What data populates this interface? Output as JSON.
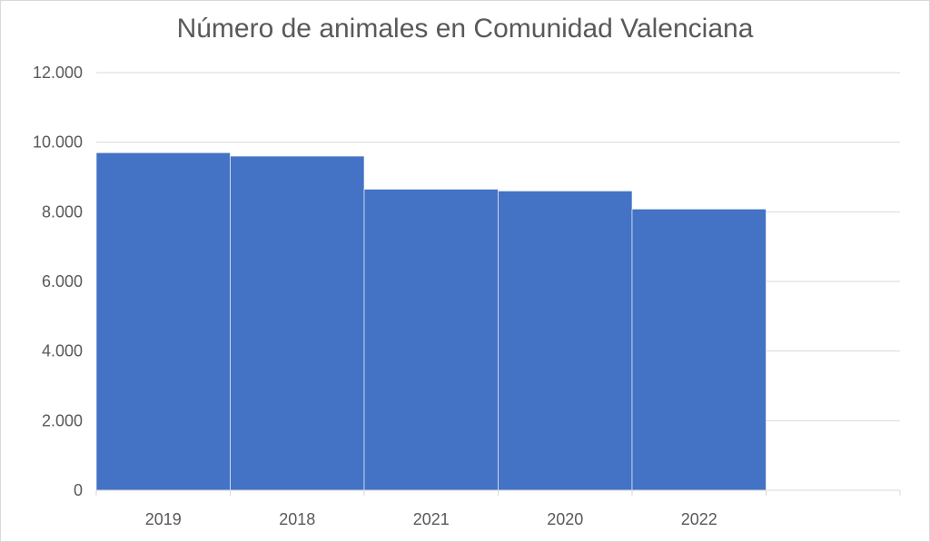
{
  "chart_data": {
    "type": "bar",
    "title": "Número de animales en Comunidad Valenciana",
    "categories": [
      "2019",
      "2018",
      "2021",
      "2020",
      "2022"
    ],
    "values": [
      9700,
      9600,
      8650,
      8600,
      8080
    ],
    "ylim": [
      0,
      12000
    ],
    "yticks": [
      0,
      2000,
      4000,
      6000,
      8000,
      10000,
      12000
    ],
    "ytick_labels": [
      "0",
      "2.000",
      "4.000",
      "6.000",
      "8.000",
      "10.000",
      "12.000"
    ],
    "category_slots": 6,
    "grid": true,
    "bar_color": "#4472c4",
    "grid_color": "#d9d9d9"
  }
}
